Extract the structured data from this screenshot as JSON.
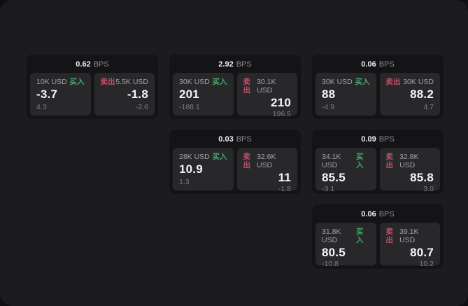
{
  "labels": {
    "buy": "买入",
    "sell": "卖出",
    "bps_suffix": "BPS"
  },
  "colors": {
    "buy_green": "#43a968",
    "sell_red": "#c05268",
    "panel_bg": "#1c1c1e",
    "card_bg": "#141416",
    "side_bg": "#28282b"
  },
  "cards": [
    {
      "bps": "0.62",
      "buy_amount": "10K USD",
      "sell_amount": "5.5K USD",
      "buy_value": "-3.7",
      "sell_value": "-1.8",
      "buy_sub": "4.3",
      "sell_sub": "-2.6"
    },
    {
      "bps": "2.92",
      "buy_amount": "30K USD",
      "sell_amount": "30.1K USD",
      "buy_value": "201",
      "sell_value": "210",
      "buy_sub": "-188.1",
      "sell_sub": "196.5"
    },
    {
      "bps": "0.06",
      "buy_amount": "30K USD",
      "sell_amount": "30K USD",
      "buy_value": "88",
      "sell_value": "88.2",
      "buy_sub": "-4.9",
      "sell_sub": "4.7"
    },
    {
      "bps": "0.03",
      "buy_amount": "28K USD",
      "sell_amount": "32.6K USD",
      "buy_value": "10.9",
      "sell_value": "11",
      "buy_sub": "1.3",
      "sell_sub": "-1.8"
    },
    {
      "bps": "0.09",
      "buy_amount": "34.1K USD",
      "sell_amount": "32.8K USD",
      "buy_value": "85.5",
      "sell_value": "85.8",
      "buy_sub": "-3.1",
      "sell_sub": "3.0"
    },
    {
      "bps": "0.06",
      "buy_amount": "31.8K USD",
      "sell_amount": "39.1K USD",
      "buy_value": "80.5",
      "sell_value": "80.7",
      "buy_sub": "-10.8",
      "sell_sub": "10.2"
    }
  ]
}
